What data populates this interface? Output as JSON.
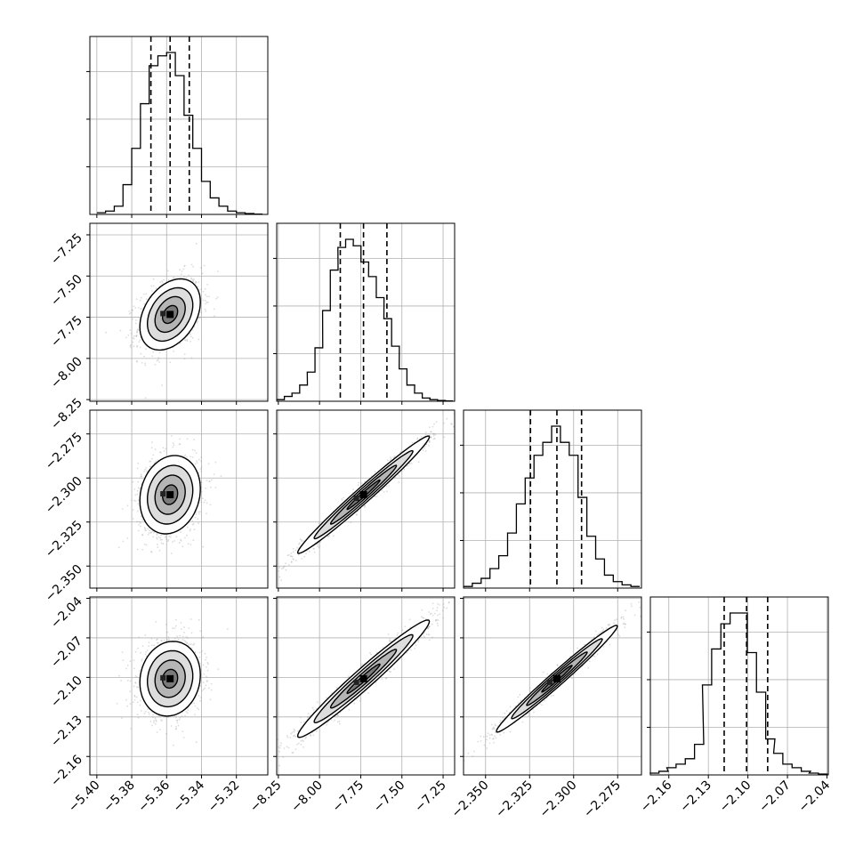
{
  "chart_data": {
    "type": "corner",
    "parameters": 4,
    "grid": true,
    "quantile_lines": "dashed",
    "panels": {
      "diagonal": [
        {
          "type": "histogram",
          "range": [
            -5.404,
            -5.302
          ],
          "bin_centers": [
            -5.3975,
            -5.3925,
            -5.3875,
            -5.3825,
            -5.3775,
            -5.3725,
            -5.3675,
            -5.3625,
            -5.3575,
            -5.3525,
            -5.3475,
            -5.3425,
            -5.3375,
            -5.3325,
            -5.3275,
            -5.3225,
            -5.3175,
            -5.3125,
            -5.3075
          ],
          "counts": [
            0.01,
            0.02,
            0.05,
            0.18,
            0.4,
            0.67,
            0.9,
            0.96,
            0.98,
            0.84,
            0.6,
            0.4,
            0.2,
            0.1,
            0.05,
            0.02,
            0.01,
            0.005,
            0.002
          ],
          "quantiles": [
            -5.369,
            -5.358,
            -5.347
          ]
        },
        {
          "type": "histogram",
          "range": [
            -8.26,
            -7.18
          ],
          "bin_centers": [
            -8.237,
            -8.19,
            -8.144,
            -8.097,
            -8.051,
            -8.004,
            -7.958,
            -7.911,
            -7.865,
            -7.818,
            -7.772,
            -7.725,
            -7.679,
            -7.632,
            -7.586,
            -7.539,
            -7.493,
            -7.446,
            -7.4,
            -7.353,
            -7.307,
            -7.26,
            -7.214
          ],
          "counts": [
            0.01,
            0.03,
            0.05,
            0.1,
            0.18,
            0.33,
            0.56,
            0.81,
            0.95,
            1.0,
            0.96,
            0.86,
            0.77,
            0.64,
            0.51,
            0.34,
            0.2,
            0.1,
            0.05,
            0.02,
            0.01,
            0.005,
            0.002
          ],
          "quantiles": [
            -7.874,
            -7.733,
            -7.591
          ]
        },
        {
          "type": "histogram",
          "range": [
            -2.3625,
            -2.2615
          ],
          "bin_centers": [
            -2.36,
            -2.355,
            -2.35,
            -2.345,
            -2.34,
            -2.335,
            -2.33,
            -2.325,
            -2.32,
            -2.315,
            -2.31,
            -2.305,
            -2.3,
            -2.295,
            -2.29,
            -2.285,
            -2.28,
            -2.275,
            -2.27,
            -2.265
          ],
          "counts": [
            0.01,
            0.03,
            0.06,
            0.12,
            0.2,
            0.34,
            0.52,
            0.68,
            0.82,
            0.9,
            1.0,
            0.9,
            0.82,
            0.56,
            0.32,
            0.18,
            0.08,
            0.04,
            0.02,
            0.01
          ],
          "quantiles": [
            -2.3245,
            -2.3095,
            -2.2955
          ]
        },
        {
          "type": "histogram",
          "range": [
            -2.174,
            -2.039
          ],
          "bin_centers": [
            -2.171,
            -2.164,
            -2.158,
            -2.151,
            -2.144,
            -2.137,
            -2.131,
            -2.124,
            -2.117,
            -2.11,
            -2.104,
            -2.097,
            -2.09,
            -2.083,
            -2.077,
            -2.07,
            -2.063,
            -2.056,
            -2.05,
            -2.043
          ],
          "counts": [
            0.01,
            0.02,
            0.04,
            0.06,
            0.09,
            0.17,
            0.5,
            0.7,
            0.84,
            0.9,
            0.9,
            0.68,
            0.46,
            0.2,
            0.12,
            0.06,
            0.04,
            0.02,
            0.01,
            0.005
          ],
          "quantiles": [
            -2.118,
            -2.101,
            -2.085
          ]
        }
      ],
      "scatter_2d": [
        {
          "row": 1,
          "col": 0,
          "center": [
            -5.358,
            -7.733
          ],
          "contours": [
            "0.5sigma",
            "1sigma",
            "1.5sigma",
            "2sigma"
          ]
        },
        {
          "row": 2,
          "col": 0,
          "center": [
            -5.358,
            -2.3095
          ],
          "contours": [
            "0.5sigma",
            "1sigma",
            "1.5sigma",
            "2sigma"
          ]
        },
        {
          "row": 3,
          "col": 0,
          "center": [
            -5.358,
            -2.101
          ],
          "contours": [
            "0.5sigma",
            "1sigma",
            "1.5sigma",
            "2sigma"
          ]
        },
        {
          "row": 2,
          "col": 1,
          "center": [
            -7.733,
            -2.3095
          ],
          "contours": [
            "0.5sigma",
            "1sigma",
            "1.5sigma",
            "2sigma"
          ]
        },
        {
          "row": 3,
          "col": 1,
          "center": [
            -7.733,
            -2.101
          ],
          "contours": [
            "0.5sigma",
            "1sigma",
            "1.5sigma",
            "2sigma"
          ]
        },
        {
          "row": 3,
          "col": 2,
          "center": [
            -2.3095,
            -2.101
          ],
          "contours": [
            "0.5sigma",
            "1sigma",
            "1.5sigma",
            "2sigma"
          ]
        }
      ]
    },
    "axes": [
      {
        "range": [
          -5.404,
          -5.302
        ],
        "ticks": [
          -5.4,
          -5.38,
          -5.36,
          -5.34,
          -5.32
        ],
        "tick_labels": [
          "−5.40",
          "−5.38",
          "−5.36",
          "−5.34",
          "−5.32"
        ]
      },
      {
        "range": [
          -8.26,
          -7.18
        ],
        "ticks": [
          -8.25,
          -8.0,
          -7.75,
          -7.5,
          -7.25
        ],
        "tick_labels": [
          "−8.25",
          "−8.00",
          "−7.75",
          "−7.50",
          "−7.25"
        ]
      },
      {
        "range": [
          -2.3625,
          -2.2615
        ],
        "ticks": [
          -2.35,
          -2.325,
          -2.3,
          -2.275
        ],
        "tick_labels": [
          "−2.350",
          "−2.325",
          "−2.300",
          "−2.275"
        ]
      },
      {
        "range": [
          -2.174,
          -2.039
        ],
        "ticks": [
          -2.16,
          -2.13,
          -2.1,
          -2.07,
          -2.04
        ],
        "tick_labels": [
          "−2.16",
          "−2.13",
          "−2.10",
          "−2.07",
          "−2.04"
        ]
      }
    ],
    "colors": {
      "points": "#9a9a9a",
      "fill_dark": "#000000",
      "line": "#000000",
      "grid": "#b0b0b0"
    }
  }
}
